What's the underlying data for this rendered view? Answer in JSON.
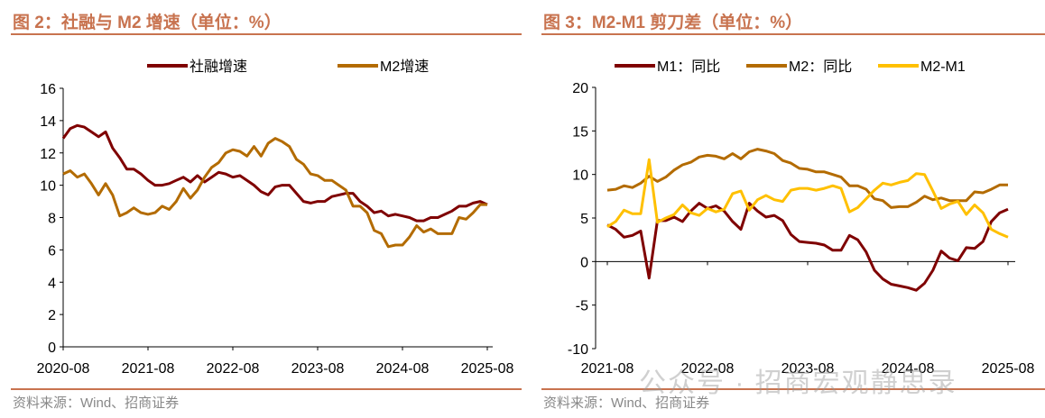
{
  "charts_header": {
    "left_title": "图 2：社融与 M2 增速（单位：%）",
    "right_title": "图 3：M2-M1 剪刀差（单位：%）",
    "left_source": "资料来源：Wind、招商证券",
    "right_source": "资料来源：Wind、招商证券",
    "watermark": "公众号 · 招商宏观静思录"
  },
  "chart_data": [
    {
      "type": "line",
      "title": "图 2：社融与 M2 增速（单位：%）",
      "x_start": "2020-08",
      "x_end": "2025-08",
      "x_frequency": "monthly",
      "xtick_labels": [
        "2020-08",
        "2021-08",
        "2022-08",
        "2023-08",
        "2024-08",
        "2025-08"
      ],
      "ylim": [
        0,
        16
      ],
      "ytick_labels": [
        "0",
        "2",
        "4",
        "6",
        "8",
        "10",
        "12",
        "14",
        "16"
      ],
      "grid": false,
      "legend_position": "top",
      "series": [
        {
          "name": "社融增速",
          "color": "#7f0000",
          "values": [
            12.9,
            13.5,
            13.7,
            13.6,
            13.3,
            13.0,
            13.3,
            12.3,
            11.7,
            11.0,
            11.0,
            10.7,
            10.3,
            10.0,
            10.0,
            10.1,
            10.3,
            10.5,
            10.2,
            10.6,
            10.2,
            10.5,
            10.8,
            10.7,
            10.5,
            10.6,
            10.3,
            10.0,
            9.6,
            9.4,
            9.9,
            10.0,
            10.0,
            9.5,
            9.0,
            8.9,
            9.0,
            9.0,
            9.3,
            9.4,
            9.5,
            9.5,
            9.0,
            8.7,
            8.3,
            8.4,
            8.1,
            8.2,
            8.1,
            8.0,
            7.8,
            7.8,
            8.0,
            8.0,
            8.2,
            8.4,
            8.7,
            8.7,
            8.9,
            9.0,
            8.8
          ]
        },
        {
          "name": "M2增速",
          "color": "#b36b00",
          "values": [
            10.7,
            10.9,
            10.5,
            10.7,
            10.1,
            9.4,
            10.1,
            9.4,
            8.1,
            8.3,
            8.6,
            8.3,
            8.2,
            8.3,
            8.7,
            8.5,
            9.0,
            9.8,
            9.2,
            9.7,
            10.5,
            11.1,
            11.4,
            12.0,
            12.2,
            12.1,
            11.8,
            12.4,
            11.8,
            12.6,
            12.9,
            12.7,
            12.4,
            11.6,
            11.3,
            10.7,
            10.6,
            10.3,
            10.3,
            10.0,
            9.7,
            8.7,
            8.7,
            8.3,
            7.2,
            7.0,
            6.2,
            6.3,
            6.3,
            6.8,
            7.5,
            7.1,
            7.3,
            7.0,
            7.0,
            7.0,
            8.0,
            7.9,
            8.3,
            8.8,
            8.8
          ]
        }
      ]
    },
    {
      "type": "line",
      "title": "图 3：M2-M1 剪刀差（单位：%）",
      "x_start": "2021-08",
      "x_end": "2025-08",
      "x_frequency": "monthly",
      "xtick_labels": [
        "2021-08",
        "2022-08",
        "2023-08",
        "2024-08",
        "2025-08"
      ],
      "ylim": [
        -10,
        20
      ],
      "ytick_labels": [
        "-10",
        "-5",
        "0",
        "5",
        "10",
        "15",
        "20"
      ],
      "grid": false,
      "legend_position": "top",
      "series": [
        {
          "name": "M1：同比",
          "color": "#7f0000",
          "values": [
            4.2,
            3.7,
            2.8,
            3.0,
            3.5,
            -1.9,
            4.7,
            4.7,
            5.1,
            4.6,
            5.8,
            6.7,
            6.1,
            6.4,
            5.8,
            4.6,
            3.7,
            6.7,
            5.8,
            5.1,
            5.3,
            4.7,
            3.1,
            2.3,
            2.2,
            2.1,
            1.9,
            1.3,
            1.3,
            3.0,
            2.5,
            1.1,
            -1.0,
            -2.0,
            -2.6,
            -2.8,
            -3.0,
            -3.3,
            -2.5,
            -1.0,
            1.2,
            0.4,
            0.1,
            1.6,
            1.5,
            2.3,
            4.6,
            5.6,
            6.0
          ]
        },
        {
          "name": "M2：同比",
          "color": "#b36b00",
          "values": [
            8.2,
            8.3,
            8.7,
            8.5,
            9.0,
            9.8,
            9.2,
            9.7,
            10.5,
            11.1,
            11.4,
            12.0,
            12.2,
            12.1,
            11.8,
            12.4,
            11.8,
            12.6,
            12.9,
            12.7,
            12.4,
            11.6,
            11.3,
            10.7,
            10.6,
            10.3,
            10.3,
            10.0,
            9.7,
            8.7,
            8.7,
            8.3,
            7.2,
            7.0,
            6.2,
            6.3,
            6.3,
            6.8,
            7.5,
            7.1,
            7.3,
            7.0,
            7.0,
            7.0,
            8.0,
            7.9,
            8.3,
            8.8,
            8.8
          ]
        },
        {
          "name": "M2-M1",
          "color": "#ffc000",
          "values": [
            4.0,
            4.6,
            5.9,
            5.5,
            5.5,
            11.7,
            4.5,
            5.0,
            5.4,
            6.5,
            5.6,
            5.3,
            6.1,
            5.7,
            6.0,
            7.8,
            8.1,
            5.9,
            7.1,
            7.6,
            7.1,
            6.9,
            8.2,
            8.4,
            8.4,
            8.2,
            8.4,
            8.7,
            8.4,
            5.7,
            6.2,
            7.2,
            8.2,
            9.0,
            8.8,
            9.1,
            9.3,
            10.1,
            10.0,
            8.1,
            6.1,
            6.6,
            6.9,
            5.4,
            6.5,
            5.6,
            3.7,
            3.2,
            2.8
          ]
        }
      ]
    }
  ]
}
